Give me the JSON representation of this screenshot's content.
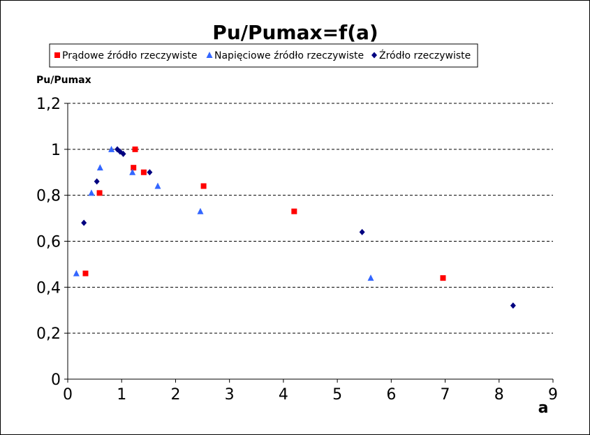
{
  "chart_data": {
    "type": "scatter",
    "title": "Pu/Pumax=f(a)",
    "xlabel": "a",
    "ylabel": "Pu/Pumax",
    "xlim": [
      0,
      9
    ],
    "ylim": [
      0,
      1.2
    ],
    "x_ticks": [
      "0",
      "1",
      "2",
      "3",
      "4",
      "5",
      "6",
      "7",
      "8",
      "9"
    ],
    "y_ticks": [
      "0",
      "0,2",
      "0,4",
      "0,6",
      "0,8",
      "1",
      "1,2"
    ],
    "grid": "horizontal dashed",
    "legend_position": "top",
    "series": [
      {
        "name": "Prądowe źródło rzeczywiste",
        "marker": "square",
        "color": "#ff0000",
        "points": [
          [
            0.33,
            0.46
          ],
          [
            0.59,
            0.81
          ],
          [
            1.22,
            0.92
          ],
          [
            1.25,
            1.0
          ],
          [
            1.41,
            0.9
          ],
          [
            2.52,
            0.84
          ],
          [
            4.2,
            0.73
          ],
          [
            6.96,
            0.44
          ]
        ]
      },
      {
        "name": "Napięciowe źródło rzeczywiste",
        "marker": "triangle",
        "color": "#3366ff",
        "points": [
          [
            0.16,
            0.46
          ],
          [
            0.44,
            0.81
          ],
          [
            0.6,
            0.92
          ],
          [
            0.81,
            1.0
          ],
          [
            1.2,
            0.9
          ],
          [
            1.67,
            0.84
          ],
          [
            2.46,
            0.73
          ],
          [
            5.62,
            0.44
          ]
        ]
      },
      {
        "name": "Źródło rzeczywiste",
        "marker": "diamond",
        "color": "#000080",
        "points": [
          [
            0.3,
            0.68
          ],
          [
            0.54,
            0.86
          ],
          [
            0.92,
            1.0
          ],
          [
            0.97,
            0.99
          ],
          [
            1.03,
            0.98
          ],
          [
            1.52,
            0.9
          ],
          [
            5.46,
            0.64
          ],
          [
            8.26,
            0.32
          ]
        ]
      }
    ]
  }
}
